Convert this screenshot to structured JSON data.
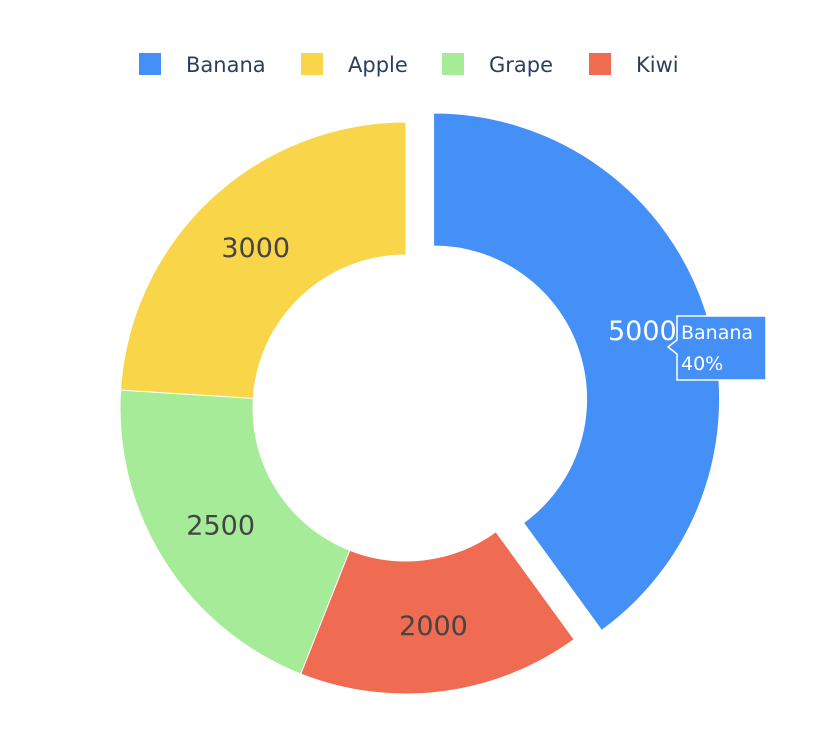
{
  "chart_data": {
    "type": "pie",
    "hole": true,
    "slices": [
      {
        "label": "Banana",
        "value": 5000,
        "color": "#4590f7",
        "pulled": true,
        "text_color": "#ffffff"
      },
      {
        "label": "Kiwi",
        "value": 2000,
        "color": "#ef6b51",
        "pulled": false,
        "text_color": "#444444"
      },
      {
        "label": "Grape",
        "value": 2500,
        "color": "#a6eb98",
        "pulled": false,
        "text_color": "#444444"
      },
      {
        "label": "Apple",
        "value": 3000,
        "color": "#f9d649",
        "pulled": false,
        "text_color": "#444444"
      }
    ],
    "legend": {
      "placement": "top",
      "orientation": "horizontal",
      "entries": [
        "Banana",
        "Apple",
        "Grape",
        "Kiwi"
      ]
    },
    "tooltip": {
      "slice": "Banana",
      "label": "Banana",
      "percent": "40%"
    }
  }
}
